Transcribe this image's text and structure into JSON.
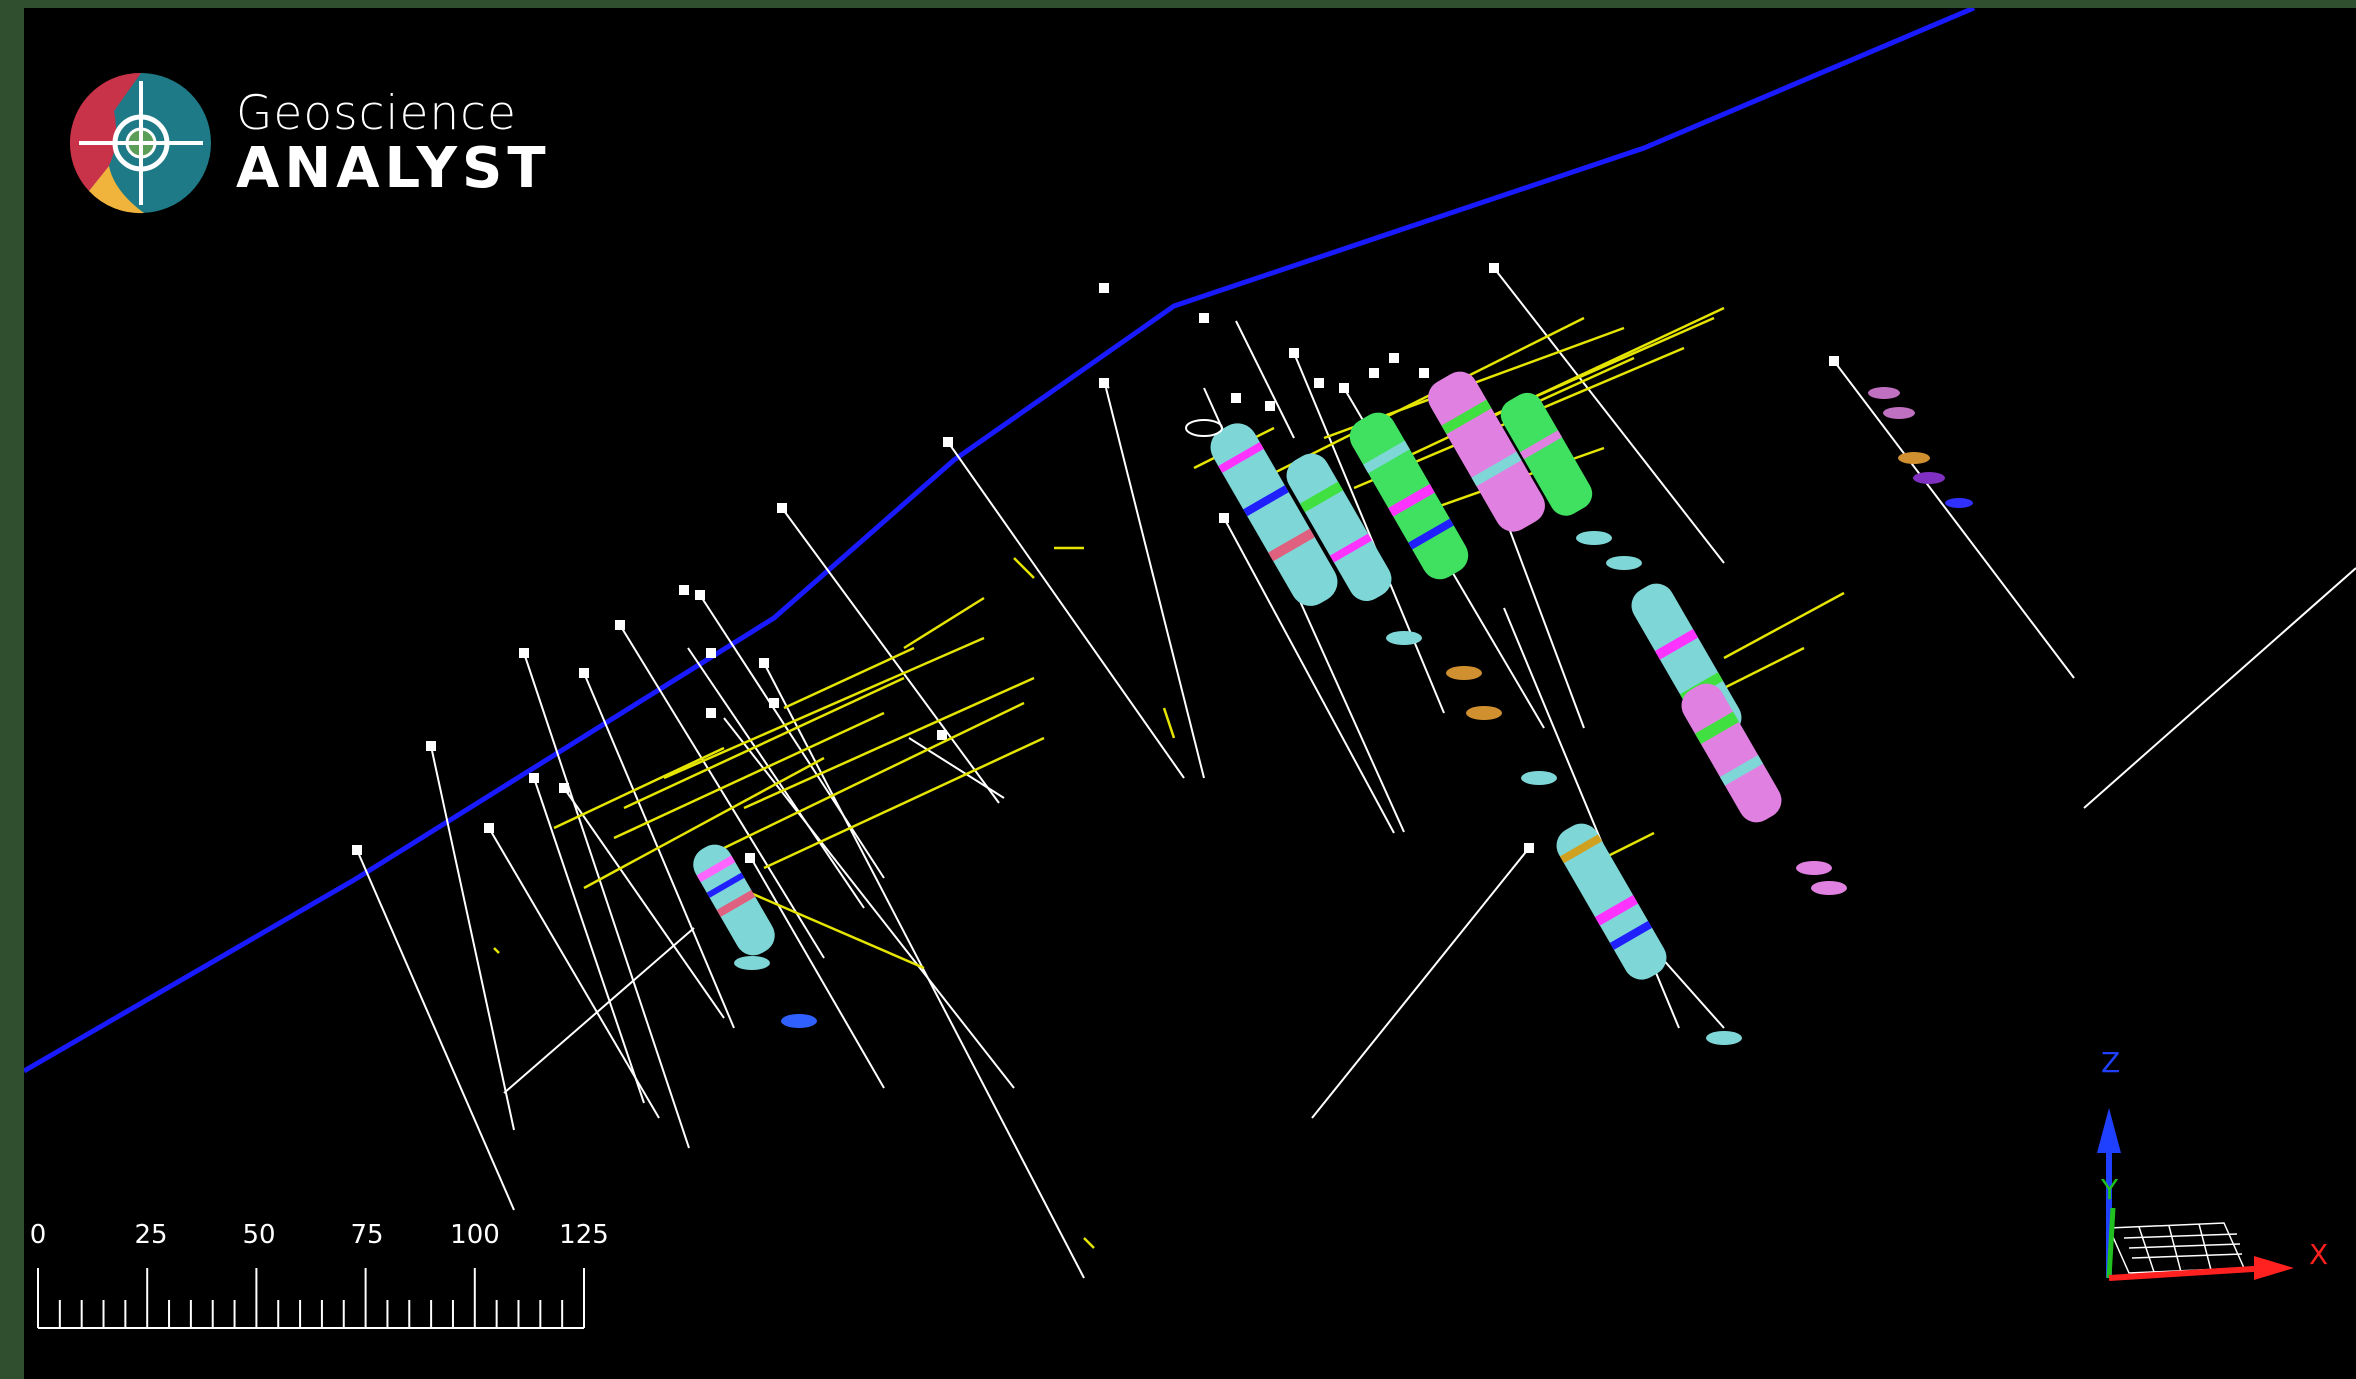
{
  "app": {
    "logo": {
      "line1": "Geoscience",
      "line2": "ANALYST"
    }
  },
  "scale_bar": {
    "tick_labels": [
      "0",
      "25",
      "50",
      "75",
      "100",
      "125"
    ]
  },
  "axes": {
    "x": "X",
    "y": "Y",
    "z": "Z"
  },
  "colors": {
    "background": "#000000",
    "frame": "#2f4f2f",
    "topo_line": "#1a1aff",
    "drill_trace": "#ffffff",
    "assay_trace": "#e5e500",
    "axis_x": "#ff2020",
    "axis_y": "#20c020",
    "axis_z": "#2040ff"
  }
}
